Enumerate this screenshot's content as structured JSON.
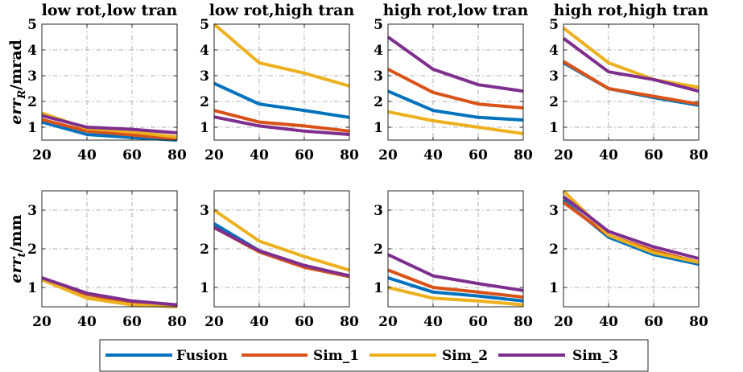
{
  "legend": {
    "entries": [
      {
        "name": "Fusion",
        "color": "#0072BD"
      },
      {
        "name": "Sim_1",
        "color": "#D95319"
      },
      {
        "name": "Sim_2",
        "color": "#EDB120"
      },
      {
        "name": "Sim_3",
        "color": "#7E2F8E"
      }
    ],
    "placement": "bottom-center"
  },
  "chart_data": [
    {
      "type": "line",
      "title": "low rot,low tran",
      "ylabel": "errR/mrad",
      "ylabel_parts": {
        "base": "err",
        "sub": "R",
        "unit": "/mrad"
      },
      "x": [
        20,
        40,
        60,
        80
      ],
      "xlim": [
        20,
        80
      ],
      "ylim": [
        0.5,
        5
      ],
      "xticks": [
        20,
        40,
        60,
        80
      ],
      "yticks": [
        1,
        2,
        3,
        4,
        5
      ],
      "grid": true,
      "series": [
        {
          "name": "Fusion",
          "values": [
            1.2,
            0.72,
            0.6,
            0.5
          ]
        },
        {
          "name": "Sim_1",
          "values": [
            1.3,
            0.85,
            0.7,
            0.55
          ]
        },
        {
          "name": "Sim_2",
          "values": [
            1.55,
            0.95,
            0.82,
            0.62
          ]
        },
        {
          "name": "Sim_3",
          "values": [
            1.45,
            1.0,
            0.92,
            0.78
          ]
        }
      ]
    },
    {
      "type": "line",
      "title": "low rot,high tran",
      "ylabel": "",
      "x": [
        20,
        40,
        60,
        80
      ],
      "xlim": [
        20,
        80
      ],
      "ylim": [
        0.5,
        5
      ],
      "xticks": [
        20,
        40,
        60,
        80
      ],
      "yticks": [
        1,
        2,
        3,
        4,
        5
      ],
      "grid": true,
      "series": [
        {
          "name": "Fusion",
          "values": [
            2.7,
            1.9,
            1.65,
            1.38
          ]
        },
        {
          "name": "Sim_1",
          "values": [
            1.65,
            1.2,
            1.05,
            0.85
          ]
        },
        {
          "name": "Sim_2",
          "values": [
            5.0,
            3.5,
            3.1,
            2.6
          ]
        },
        {
          "name": "Sim_3",
          "values": [
            1.4,
            1.05,
            0.85,
            0.72
          ]
        }
      ]
    },
    {
      "type": "line",
      "title": "high rot,low tran",
      "ylabel": "",
      "x": [
        20,
        40,
        60,
        80
      ],
      "xlim": [
        20,
        80
      ],
      "ylim": [
        0.5,
        5
      ],
      "xticks": [
        20,
        40,
        60,
        80
      ],
      "yticks": [
        1,
        2,
        3,
        4,
        5
      ],
      "grid": true,
      "series": [
        {
          "name": "Fusion",
          "values": [
            2.4,
            1.65,
            1.38,
            1.28
          ]
        },
        {
          "name": "Sim_1",
          "values": [
            3.25,
            2.35,
            1.9,
            1.75
          ]
        },
        {
          "name": "Sim_2",
          "values": [
            1.6,
            1.25,
            1.0,
            0.75
          ]
        },
        {
          "name": "Sim_3",
          "values": [
            4.5,
            3.25,
            2.65,
            2.4
          ]
        }
      ]
    },
    {
      "type": "line",
      "title": "high rot,high tran",
      "ylabel": "",
      "x": [
        20,
        40,
        60,
        80
      ],
      "xlim": [
        20,
        80
      ],
      "ylim": [
        0.5,
        5
      ],
      "xticks": [
        20,
        40,
        60,
        80
      ],
      "yticks": [
        1,
        2,
        3,
        4,
        5
      ],
      "grid": true,
      "series": [
        {
          "name": "Fusion",
          "values": [
            3.5,
            2.5,
            2.15,
            1.85
          ]
        },
        {
          "name": "Sim_1",
          "values": [
            3.55,
            2.5,
            2.2,
            1.9
          ]
        },
        {
          "name": "Sim_2",
          "values": [
            4.85,
            3.5,
            2.85,
            2.55
          ]
        },
        {
          "name": "Sim_3",
          "values": [
            4.45,
            3.15,
            2.85,
            2.4
          ]
        }
      ]
    },
    {
      "type": "line",
      "title": "",
      "ylabel": "errt/mm",
      "ylabel_parts": {
        "base": "err",
        "sub": "t",
        "unit": "/mm"
      },
      "x": [
        20,
        40,
        60,
        80
      ],
      "xlim": [
        20,
        80
      ],
      "ylim": [
        0.5,
        3.5
      ],
      "xticks": [
        20,
        40,
        60,
        80
      ],
      "yticks": [
        1,
        2,
        3
      ],
      "grid": true,
      "series": [
        {
          "name": "Fusion",
          "values": [
            1.22,
            0.82,
            0.6,
            0.52
          ]
        },
        {
          "name": "Sim_1",
          "values": [
            1.22,
            0.82,
            0.6,
            0.52
          ]
        },
        {
          "name": "Sim_2",
          "values": [
            1.2,
            0.72,
            0.55,
            0.5
          ]
        },
        {
          "name": "Sim_3",
          "values": [
            1.25,
            0.85,
            0.65,
            0.55
          ]
        }
      ]
    },
    {
      "type": "line",
      "title": "",
      "ylabel": "",
      "x": [
        20,
        40,
        60,
        80
      ],
      "xlim": [
        20,
        80
      ],
      "ylim": [
        0.5,
        3.5
      ],
      "xticks": [
        20,
        40,
        60,
        80
      ],
      "yticks": [
        1,
        2,
        3
      ],
      "grid": true,
      "series": [
        {
          "name": "Fusion",
          "values": [
            2.65,
            1.95,
            1.55,
            1.3
          ]
        },
        {
          "name": "Sim_1",
          "values": [
            2.55,
            1.92,
            1.52,
            1.28
          ]
        },
        {
          "name": "Sim_2",
          "values": [
            3.0,
            2.2,
            1.8,
            1.45
          ]
        },
        {
          "name": "Sim_3",
          "values": [
            2.55,
            1.95,
            1.57,
            1.3
          ]
        }
      ]
    },
    {
      "type": "line",
      "title": "",
      "ylabel": "",
      "x": [
        20,
        40,
        60,
        80
      ],
      "xlim": [
        20,
        80
      ],
      "ylim": [
        0.5,
        3.5
      ],
      "xticks": [
        20,
        40,
        60,
        80
      ],
      "yticks": [
        1,
        2,
        3
      ],
      "grid": true,
      "series": [
        {
          "name": "Fusion",
          "values": [
            1.25,
            0.88,
            0.78,
            0.65
          ]
        },
        {
          "name": "Sim_1",
          "values": [
            1.45,
            1.0,
            0.88,
            0.75
          ]
        },
        {
          "name": "Sim_2",
          "values": [
            1.0,
            0.72,
            0.65,
            0.55
          ]
        },
        {
          "name": "Sim_3",
          "values": [
            1.85,
            1.3,
            1.1,
            0.92
          ]
        }
      ]
    },
    {
      "type": "line",
      "title": "",
      "ylabel": "",
      "x": [
        20,
        40,
        60,
        80
      ],
      "xlim": [
        20,
        80
      ],
      "ylim": [
        0.5,
        3.5
      ],
      "xticks": [
        20,
        40,
        60,
        80
      ],
      "yticks": [
        1,
        2,
        3
      ],
      "grid": true,
      "series": [
        {
          "name": "Fusion",
          "values": [
            3.25,
            2.3,
            1.85,
            1.6
          ]
        },
        {
          "name": "Sim_1",
          "values": [
            3.2,
            2.35,
            1.95,
            1.65
          ]
        },
        {
          "name": "Sim_2",
          "values": [
            3.5,
            2.35,
            1.9,
            1.65
          ]
        },
        {
          "name": "Sim_3",
          "values": [
            3.35,
            2.45,
            2.05,
            1.75
          ]
        }
      ]
    }
  ]
}
